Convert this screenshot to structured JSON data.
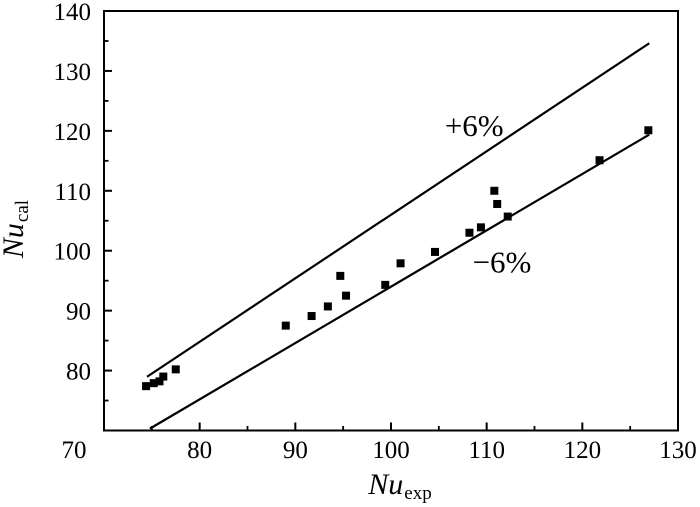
{
  "figure": {
    "background": "#ffffff",
    "y_axis_title": {
      "main": "Nu",
      "sub": "cal"
    },
    "x_axis_title": {
      "main": "Nu",
      "sub": "exp"
    }
  },
  "chart_data": {
    "type": "scatter",
    "title": "",
    "xlabel": "Nu_exp",
    "ylabel": "Nu_cal",
    "xlim": [
      70,
      130
    ],
    "ylim": [
      70,
      140
    ],
    "grid": false,
    "legend": "none",
    "axis_color": "#000000",
    "text_color": "#000000",
    "corner_tick_label": "70",
    "x_major_ticks": [
      80,
      90,
      100,
      110,
      120,
      130
    ],
    "x_minor_ticks": [
      75,
      85,
      95,
      105,
      115,
      125
    ],
    "y_major_ticks": [
      80,
      90,
      100,
      110,
      120,
      130,
      140
    ],
    "y_minor_ticks": [
      75,
      85,
      95,
      105,
      115,
      125,
      135
    ],
    "marker": {
      "shape": "square",
      "size": 8,
      "color": "#000000"
    },
    "points": [
      [
        74.4,
        77.4
      ],
      [
        75.2,
        77.9
      ],
      [
        75.8,
        78.2
      ],
      [
        76.2,
        79.0
      ],
      [
        77.5,
        80.2
      ],
      [
        89.0,
        87.5
      ],
      [
        91.7,
        89.1
      ],
      [
        93.4,
        90.7
      ],
      [
        95.3,
        92.5
      ],
      [
        94.7,
        95.8
      ],
      [
        99.4,
        94.3
      ],
      [
        101.0,
        97.9
      ],
      [
        104.6,
        99.8
      ],
      [
        108.2,
        103.0
      ],
      [
        109.4,
        103.9
      ],
      [
        112.2,
        105.7
      ],
      [
        111.1,
        107.8
      ],
      [
        110.8,
        110.0
      ],
      [
        121.8,
        115.1
      ],
      [
        126.9,
        120.1
      ]
    ],
    "lines": [
      {
        "name": "plus6-bound",
        "slope": 1.06,
        "x_start": 74.5,
        "x_end": 127.0
      },
      {
        "name": "minus6-bound",
        "slope": 0.94,
        "x_start": 74.8,
        "x_end": 127.0
      }
    ],
    "annotations": [
      {
        "text": "+6%",
        "x": 108.7,
        "y": 121.0
      },
      {
        "text": "−6%",
        "x": 111.6,
        "y": 98.2
      }
    ]
  }
}
